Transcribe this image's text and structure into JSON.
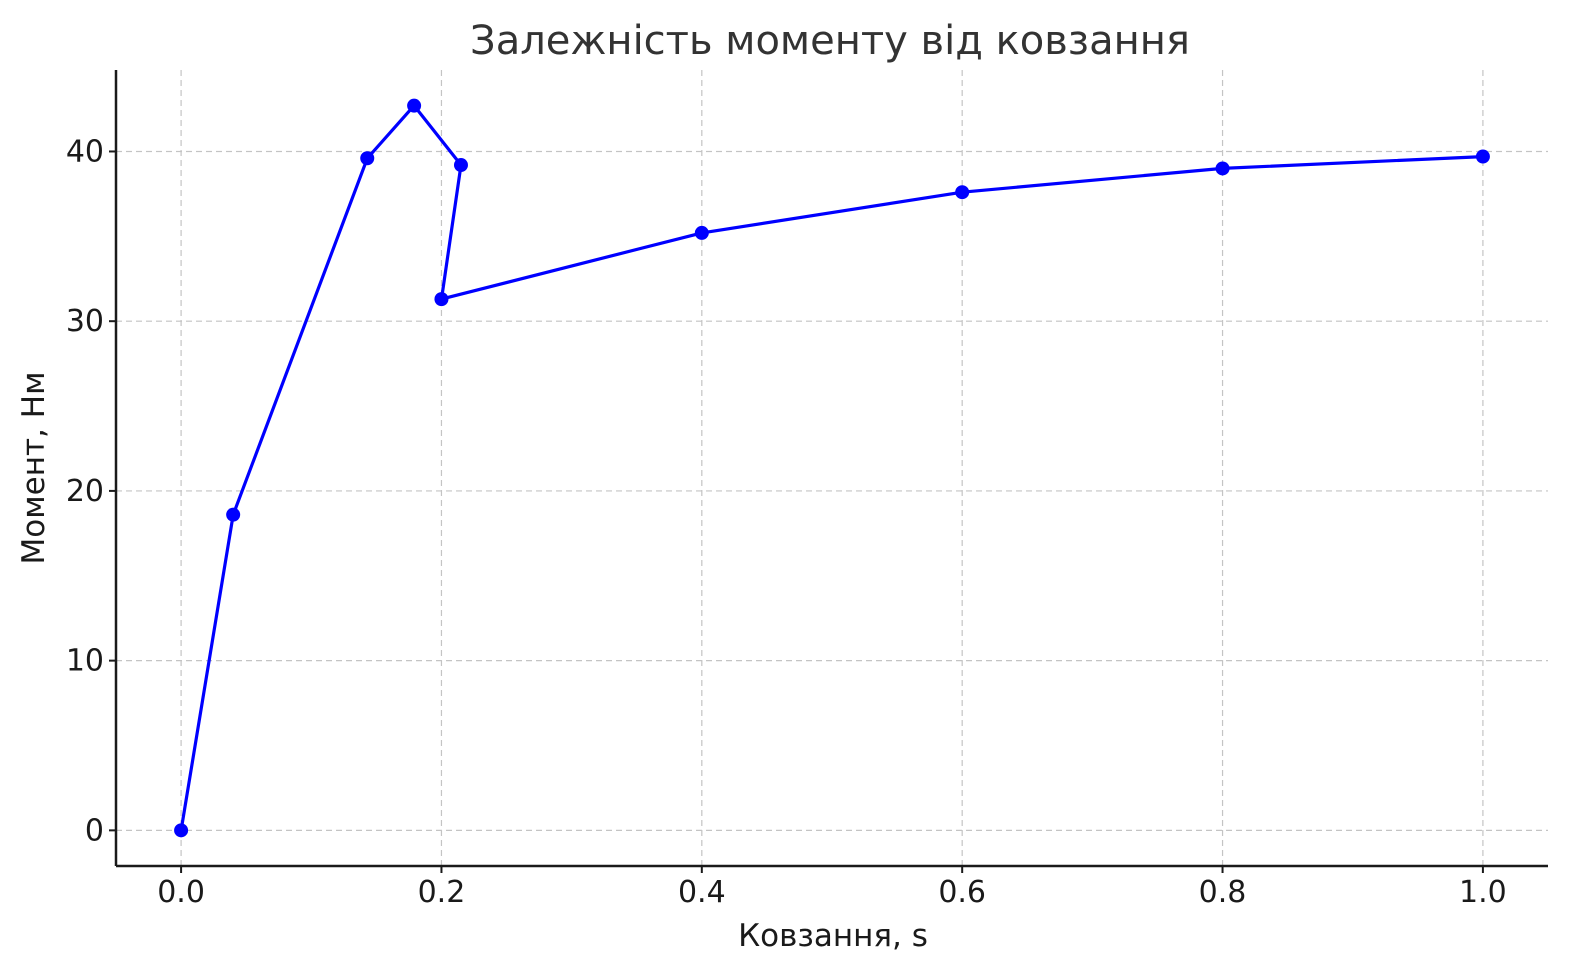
{
  "chart_data": {
    "type": "line",
    "title": "Залежність моменту від ковзання",
    "xlabel": "Ковзання, s",
    "ylabel": "Момент, Нм",
    "xlim": [
      -0.05,
      1.05
    ],
    "ylim": [
      -2.1,
      44.8
    ],
    "x_ticks": [
      0.0,
      0.2,
      0.4,
      0.6,
      0.8,
      1.0
    ],
    "x_tick_labels": [
      "0.0",
      "0.2",
      "0.4",
      "0.6",
      "0.8",
      "1.0"
    ],
    "y_ticks": [
      0,
      10,
      20,
      30,
      40
    ],
    "y_tick_labels": [
      "0",
      "10",
      "20",
      "30",
      "40"
    ],
    "grid": true,
    "legend": "none",
    "series": [
      {
        "color": "#0000ff",
        "marker": "circle",
        "x": [
          0.0,
          0.04,
          0.143,
          0.179,
          0.215,
          0.2,
          0.4,
          0.6,
          0.8,
          1.0
        ],
        "y": [
          0.0,
          18.6,
          39.6,
          42.7,
          39.2,
          31.3,
          35.2,
          37.6,
          39.0,
          39.7
        ]
      }
    ]
  }
}
